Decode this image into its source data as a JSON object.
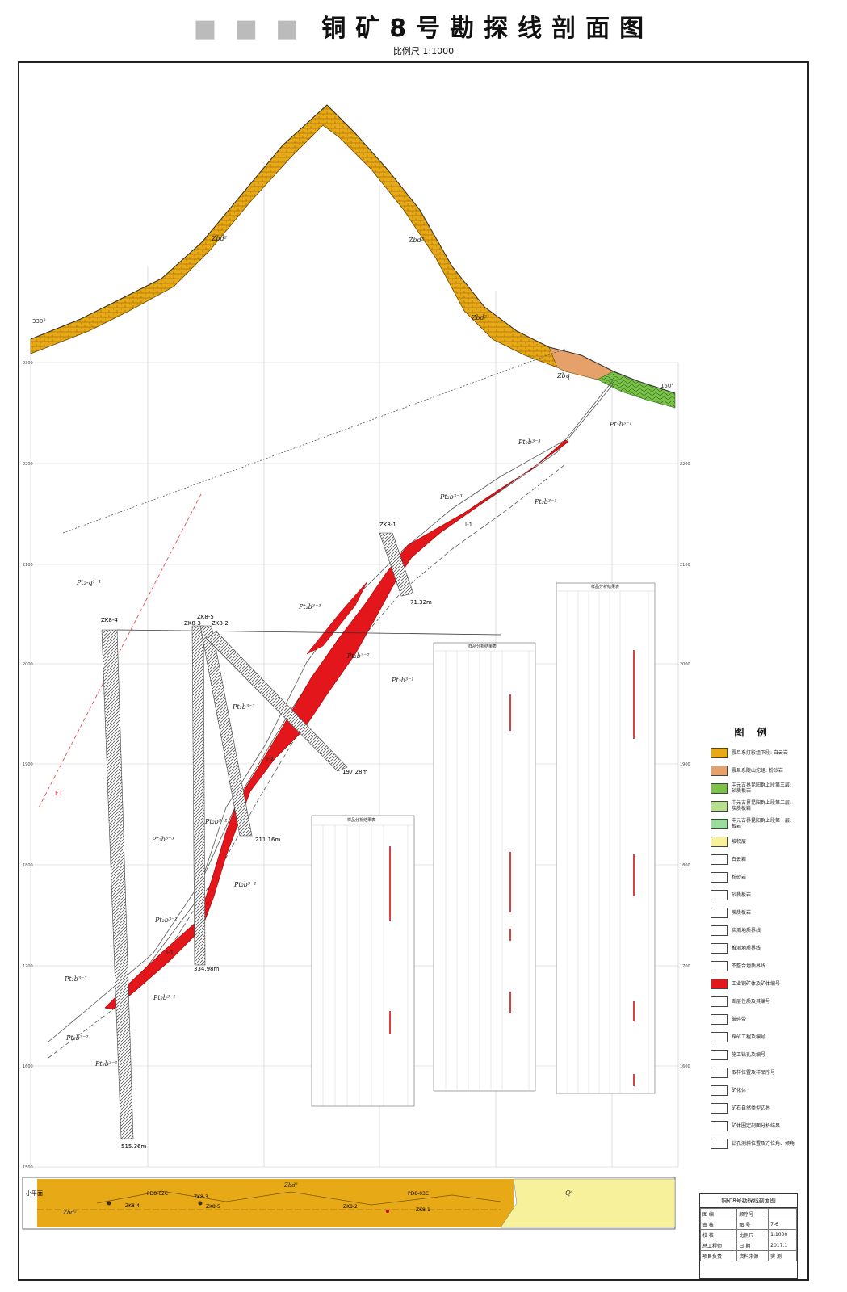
{
  "header": {
    "title_masked": "■ ■ ■",
    "title": "铜矿8号勘探线剖面图",
    "scale": "比例尺 1:1000"
  },
  "section": {
    "azimuth_left": "330°",
    "azimuth_right": "150°",
    "elevations": [
      "2300",
      "2200",
      "2100",
      "2000",
      "1900",
      "1800",
      "1700",
      "1600",
      "1500"
    ],
    "formations": {
      "zbd": "Zbd²",
      "zbq": "Zbq",
      "pt_top": "Pt₂b³⁻³",
      "pt_b31": "Pt₂b³⁻¹",
      "pt_q": "Pt₂-q¹⁻¹",
      "pt_b32": "Pt₂b³⁻²"
    },
    "orebody": "Ⅰ-1",
    "fault": "F1",
    "drillholes": [
      {
        "name": "ZK8-4",
        "depth": "515.36m"
      },
      {
        "name": "ZK8-3",
        "depth": ""
      },
      {
        "name": "ZK8-5",
        "depth": "334.98m"
      },
      {
        "name": "ZK8-2",
        "depth": "211.16m"
      },
      {
        "name": "ZK8-1",
        "depth": "71.32m"
      },
      {
        "name": "",
        "depth": "197.28m"
      }
    ],
    "sample_table_title": "样品分析结果表"
  },
  "legend": {
    "title": "图 例",
    "items": [
      {
        "label": "震旦系灯影组下段: 白云岩",
        "color": "#e8a917"
      },
      {
        "label": "震旦系陡山沱组: 粉砂岩",
        "color": "#e6a06a"
      },
      {
        "label": "中元古界昆阳群上段第三层: 砂质板岩",
        "color": "#7cc24a"
      },
      {
        "label": "中元古界昆阳群上段第二层: 炭质板岩",
        "color": "#b7e08a"
      },
      {
        "label": "中元古界昆阳群上段第一层: 板岩",
        "color": "#9bde9b"
      },
      {
        "label": "坡积层",
        "color": "#f6f19a"
      },
      {
        "label": "白云岩",
        "color": "#ffffff"
      },
      {
        "label": "粉砂岩",
        "color": "#ffffff"
      },
      {
        "label": "砂质板岩",
        "color": "#ffffff"
      },
      {
        "label": "炭质板岩",
        "color": "#ffffff"
      },
      {
        "label": "实测地质界线",
        "color": "#ffffff"
      },
      {
        "label": "推测地质界线",
        "color": "#ffffff"
      },
      {
        "label": "不整合地质界线",
        "color": "#ffffff"
      },
      {
        "label": "工业铜矿体及矿体编号",
        "color": "#e2161b"
      },
      {
        "label": "断层性质及其编号",
        "color": "#ffffff"
      },
      {
        "label": "破碎带",
        "color": "#ffffff"
      },
      {
        "label": "探矿工程及编号",
        "color": "#ffffff"
      },
      {
        "label": "施工钻孔及编号",
        "color": "#ffffff"
      },
      {
        "label": "取样位置及样品序号",
        "color": "#ffffff"
      },
      {
        "label": "矿化体",
        "color": "#ffffff"
      },
      {
        "label": "矿石自然类型边界",
        "color": "#ffffff"
      },
      {
        "label": "矿体圈定剖面分析结果",
        "color": "#ffffff"
      },
      {
        "label": "钻孔测斜位置及方位角、倾角",
        "color": "#ffffff"
      }
    ]
  },
  "plan_strip": {
    "label": "小平面",
    "items": [
      "PD8-02C",
      "ZK8-3",
      "ZK8-4",
      "ZK8-5",
      "ZK8-2",
      "ZK8-1",
      "PD8-03C",
      "Q⁴"
    ]
  },
  "title_block": {
    "heading": "铜矿8号勘探线剖面图",
    "rows": [
      [
        "图 编",
        "",
        "顺序号",
        ""
      ],
      [
        "审 核",
        "",
        "图 号",
        "7-6"
      ],
      [
        "校 核",
        "",
        "比例尺",
        "1:1000"
      ],
      [
        "总工程师",
        "",
        "日 期",
        "2017.1"
      ],
      [
        "项目负责",
        "",
        "资料来源",
        "实 测"
      ]
    ]
  },
  "colors": {
    "dolomite": "#e8a917",
    "orebody": "#e2161b",
    "green": "#7cc24a",
    "pink": "#e6a06a",
    "quaternary": "#f6f19a",
    "drillhole": "#555555"
  }
}
